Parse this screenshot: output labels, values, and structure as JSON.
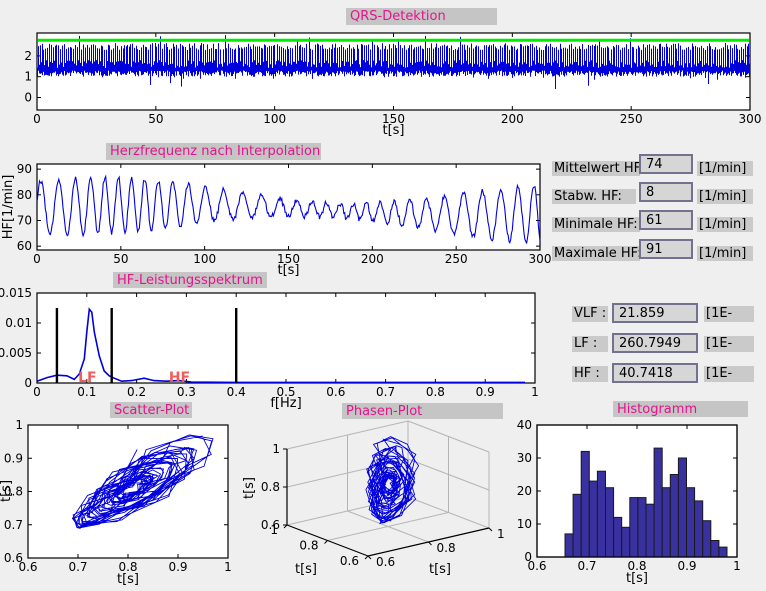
{
  "colors": {
    "background": "#efefef",
    "strip_bg": "#c5c5c5",
    "title_pink": "#e6138d",
    "line_blue": "#0000dd",
    "threshold_green": "#00ee00",
    "hist_fill": "#3a31a0",
    "annotation_red": "#f15d5d",
    "field_bg": "#d6d6d6",
    "field_border": "#72728f",
    "label_bg": "#cacaca"
  },
  "panels": {
    "qrs": {
      "title": "QRS-Detektion"
    },
    "hr": {
      "title": "Herzfrequenz nach Interpolation"
    },
    "spectrum": {
      "title": "HF-Leistungsspektrum"
    },
    "scatter": {
      "title": "Scatter-Plot"
    },
    "phase": {
      "title": "Phasen-Plot"
    },
    "hist": {
      "title": "Histogramm"
    }
  },
  "stats": [
    {
      "label": "Mittelwert HF:",
      "value": "74",
      "unit": "[1/min]"
    },
    {
      "label": "Stabw. HF:",
      "value": "8",
      "unit": "[1/min]"
    },
    {
      "label": "Minimale HF:",
      "value": "61",
      "unit": "[1/min]"
    },
    {
      "label": "Maximale HF:",
      "value": "91",
      "unit": "[1/min]"
    }
  ],
  "bands": [
    {
      "label": "VLF :",
      "value": "21.859",
      "unit": "[1E-"
    },
    {
      "label": "LF :",
      "value": "260.7949",
      "unit": "[1E-"
    },
    {
      "label": "HF :",
      "value": "40.7418",
      "unit": "[1E-"
    }
  ],
  "chart_data": [
    {
      "id": "qrs",
      "type": "line",
      "title": "QRS-Detektion",
      "xlabel": "t[s]",
      "xlim": [
        0,
        300
      ],
      "ylim": [
        -0.6,
        3.1
      ],
      "xticks": [
        "0",
        "50",
        "100",
        "150",
        "200",
        "250",
        "300"
      ],
      "yticks": [
        "0",
        "1",
        "2"
      ],
      "signal": {
        "kind": "ecg",
        "beats_approx": 370,
        "baseline_band": [
          1.0,
          1.8
        ],
        "r_peak_range": [
          2.3,
          2.6
        ],
        "rare_peak_max": 3.0,
        "threshold_line": {
          "y": 2.75,
          "color": "#00ee00"
        }
      }
    },
    {
      "id": "hr",
      "type": "line",
      "title": "Herzfrequenz nach Interpolation",
      "xlabel": "t[s]",
      "ylabel": "HF[1/min]",
      "xlim": [
        0,
        300
      ],
      "ylim": [
        58.5,
        92
      ],
      "xticks": [
        "0",
        "50",
        "100",
        "150",
        "200",
        "250",
        "300"
      ],
      "yticks": [
        "60",
        "70",
        "80",
        "90"
      ],
      "series": {
        "mean": 74,
        "std": 8,
        "min": 61,
        "max": 91,
        "osc_period_s": 9.7
      }
    },
    {
      "id": "spectrum",
      "type": "line",
      "title": "HF-Leistungsspektrum",
      "xlabel": "f[Hz]",
      "xlim": [
        0,
        1
      ],
      "ylim": [
        0,
        0.015
      ],
      "xticks": [
        "0",
        "0.1",
        "0.2",
        "0.3",
        "0.4",
        "0.5",
        "0.6",
        "0.7",
        "0.8",
        "0.9",
        "1"
      ],
      "yticks": [
        "0",
        "0.005",
        "0.01",
        "0.015"
      ],
      "points": [
        [
          0,
          0.0003
        ],
        [
          0.02,
          0.0009
        ],
        [
          0.04,
          0.0013
        ],
        [
          0.06,
          0.0012
        ],
        [
          0.075,
          0.0006
        ],
        [
          0.085,
          0.0015
        ],
        [
          0.095,
          0.004
        ],
        [
          0.1,
          0.0085
        ],
        [
          0.105,
          0.0123
        ],
        [
          0.11,
          0.0118
        ],
        [
          0.115,
          0.0085
        ],
        [
          0.125,
          0.0045
        ],
        [
          0.135,
          0.002
        ],
        [
          0.145,
          0.0012
        ],
        [
          0.155,
          0.0008
        ],
        [
          0.17,
          0.0003
        ],
        [
          0.19,
          0.0004
        ],
        [
          0.215,
          0.0008
        ],
        [
          0.235,
          0.0004
        ],
        [
          0.26,
          0.0003
        ],
        [
          0.285,
          0.0004
        ],
        [
          0.31,
          0.00015
        ],
        [
          0.4,
          0.0001
        ],
        [
          0.6,
          0.0001
        ],
        [
          0.8,
          0.0001
        ],
        [
          0.98,
          0.0001
        ]
      ],
      "peak": {
        "f": 0.105,
        "power": 0.0123
      },
      "vlines": [
        0.04,
        0.15,
        0.4
      ],
      "vline_top": 0.0125,
      "annotations": [
        {
          "text": "LF",
          "x": 0.085
        },
        {
          "text": "HF",
          "x": 0.27
        }
      ]
    },
    {
      "id": "scatter",
      "type": "line-scatter",
      "title": "Scatter-Plot",
      "xlabel": "t[s]",
      "ylabel": "t[s]",
      "xlim": [
        0.6,
        1
      ],
      "ylim": [
        0.6,
        1
      ],
      "xticks": [
        "0.6",
        "0.7",
        "0.8",
        "0.9",
        "1"
      ],
      "yticks": [
        "0.6",
        "0.7",
        "0.8",
        "0.9",
        "1"
      ],
      "source": "poincare RR(i) vs RR(i+1), cloud spans 0.66-0.98 s"
    },
    {
      "id": "phase",
      "type": "line3d",
      "title": "Phasen-Plot",
      "xlabel": "t[s]",
      "ylabel": "t[s]",
      "zlabel": "t[s]",
      "lim": [
        0.6,
        1
      ],
      "ticks": [
        "0.6",
        "0.8",
        "1"
      ],
      "source": "RR(i), RR(i+1), RR(i+2) attractor"
    },
    {
      "id": "hist",
      "type": "bar",
      "title": "Histogramm",
      "xlabel": "t[s]",
      "xlim": [
        0.6,
        1
      ],
      "ylim": [
        0,
        40
      ],
      "xticks": [
        "0.6",
        "0.7",
        "0.8",
        "0.9",
        "1"
      ],
      "yticks": [
        "0",
        "10",
        "20",
        "30",
        "40"
      ],
      "bin_start": 0.656,
      "bin_width": 0.0162,
      "values": [
        7,
        19,
        32,
        23,
        26,
        21,
        12,
        9,
        18,
        18,
        16,
        33,
        21,
        25,
        30,
        21,
        17,
        11,
        5,
        3
      ]
    }
  ]
}
